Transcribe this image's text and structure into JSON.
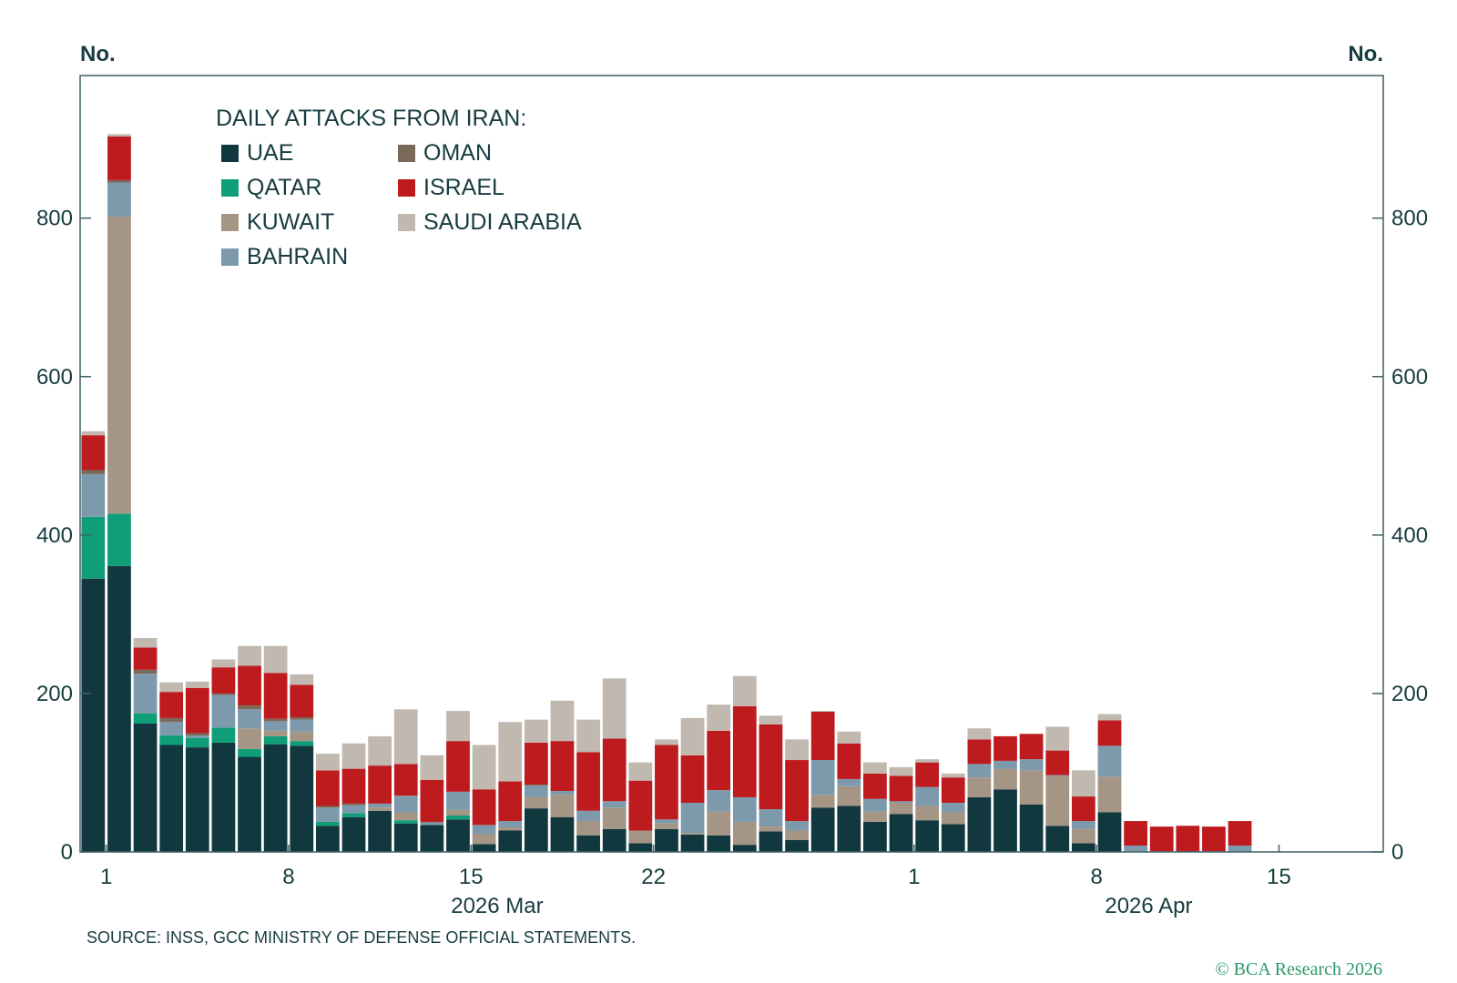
{
  "chart_data": {
    "type": "bar",
    "stacked": true,
    "title": "DAILY ATTACKS FROM IRAN:",
    "ylabel_left": "No.",
    "ylabel_right": "No.",
    "ylim": [
      0,
      980
    ],
    "yticks": [
      0,
      200,
      400,
      600,
      800
    ],
    "grid": false,
    "legend_position": "top-left",
    "x_range": [
      "2026-02-28",
      "2026-04-19"
    ],
    "xticks": [
      {
        "date": "2026-03-01",
        "label": "1"
      },
      {
        "date": "2026-03-08",
        "label": "8"
      },
      {
        "date": "2026-03-15",
        "label": "15"
      },
      {
        "date": "2026-03-22",
        "label": "22"
      },
      {
        "date": "2026-04-01",
        "label": "1"
      },
      {
        "date": "2026-04-08",
        "label": "8"
      },
      {
        "date": "2026-04-15",
        "label": "15"
      }
    ],
    "month_labels": [
      {
        "label": "2026 Mar",
        "date": "2026-03-16"
      },
      {
        "label": "2026 Apr",
        "date": "2026-04-10"
      }
    ],
    "categories": [
      "2026-03-01",
      "2026-03-02",
      "2026-03-03",
      "2026-03-04",
      "2026-03-05",
      "2026-03-06",
      "2026-03-07",
      "2026-03-08",
      "2026-03-09",
      "2026-03-10",
      "2026-03-11",
      "2026-03-12",
      "2026-03-13",
      "2026-03-14",
      "2026-03-15",
      "2026-03-16",
      "2026-03-17",
      "2026-03-18",
      "2026-03-19",
      "2026-03-20",
      "2026-03-21",
      "2026-03-22",
      "2026-03-23",
      "2026-03-24",
      "2026-03-25",
      "2026-03-26",
      "2026-03-27",
      "2026-03-28",
      "2026-03-29",
      "2026-03-30",
      "2026-03-31",
      "2026-04-01",
      "2026-04-02",
      "2026-04-03",
      "2026-04-04",
      "2026-04-05",
      "2026-04-06",
      "2026-04-07",
      "2026-04-08",
      "2026-04-09",
      "2026-04-10",
      "2026-04-11",
      "2026-04-12",
      "2026-04-13",
      "2026-04-14"
    ],
    "series": [
      {
        "name": "UAE",
        "color": "#12383f",
        "values": [
          345,
          361,
          162,
          135,
          132,
          138,
          120,
          136,
          134,
          33,
          44,
          52,
          36,
          34,
          41,
          10,
          27,
          55,
          44,
          21,
          29,
          11,
          29,
          22,
          21,
          9,
          26,
          15,
          56,
          58,
          38,
          48,
          40,
          35,
          69,
          79,
          60,
          33,
          11,
          50,
          0,
          0,
          1,
          0,
          0
        ]
      },
      {
        "name": "QATAR",
        "color": "#0f9e78",
        "values": [
          78,
          66,
          13,
          12,
          12,
          19,
          10,
          10,
          6,
          5,
          5,
          0,
          4,
          0,
          5,
          0,
          0,
          0,
          0,
          0,
          0,
          0,
          0,
          0,
          0,
          0,
          0,
          0,
          0,
          0,
          0,
          0,
          0,
          0,
          0,
          0,
          0,
          0,
          0,
          0,
          0,
          0,
          0,
          0,
          0
        ]
      },
      {
        "name": "KUWAIT",
        "color": "#a59584",
        "values": [
          0,
          375,
          0,
          0,
          0,
          0,
          26,
          7,
          12,
          0,
          0,
          4,
          10,
          0,
          7,
          13,
          4,
          14,
          28,
          18,
          27,
          16,
          7,
          2,
          30,
          29,
          6,
          12,
          16,
          25,
          13,
          14,
          18,
          15,
          25,
          26,
          43,
          63,
          18,
          45,
          0,
          0,
          0,
          0,
          0
        ]
      },
      {
        "name": "BAHRAIN",
        "color": "#7d9aad",
        "values": [
          54,
          43,
          50,
          17,
          3,
          41,
          24,
          12,
          15,
          18,
          10,
          5,
          21,
          3,
          23,
          11,
          8,
          15,
          5,
          13,
          8,
          0,
          5,
          38,
          27,
          31,
          22,
          12,
          44,
          9,
          16,
          2,
          24,
          12,
          17,
          10,
          14,
          1,
          10,
          39,
          8,
          1,
          0,
          1,
          8
        ]
      },
      {
        "name": "OMAN",
        "color": "#7a6858",
        "values": [
          5,
          3,
          5,
          5,
          3,
          2,
          5,
          3,
          3,
          2,
          2,
          0,
          0,
          1,
          0,
          0,
          0,
          1,
          0,
          0,
          0,
          0,
          0,
          0,
          0,
          0,
          0,
          0,
          0,
          0,
          0,
          0,
          0,
          0,
          0,
          0,
          0,
          0,
          0,
          0,
          0,
          0,
          0,
          0,
          0
        ]
      },
      {
        "name": "ISRAEL",
        "color": "#be1b1e",
        "values": [
          44,
          55,
          28,
          33,
          57,
          33,
          50,
          58,
          41,
          45,
          44,
          48,
          40,
          53,
          64,
          45,
          50,
          53,
          63,
          74,
          79,
          63,
          94,
          60,
          75,
          115,
          107,
          77,
          61,
          45,
          32,
          32,
          31,
          32,
          31,
          31,
          32,
          31,
          31,
          32,
          31,
          31,
          32,
          31,
          31
        ]
      },
      {
        "name": "SAUDI ARABIA",
        "color": "#c1b9b0",
        "values": [
          5,
          3,
          12,
          12,
          8,
          10,
          25,
          34,
          13,
          21,
          32,
          37,
          69,
          31,
          38,
          56,
          75,
          29,
          51,
          41,
          76,
          23,
          7,
          47,
          33,
          38,
          11,
          26,
          1,
          15,
          14,
          11,
          4,
          5,
          14,
          0,
          0,
          30,
          33,
          8,
          0,
          0,
          0,
          0,
          0
        ]
      }
    ]
  },
  "legend": {
    "title": "DAILY ATTACKS FROM IRAN:",
    "items": [
      "UAE",
      "QATAR",
      "KUWAIT",
      "BAHRAIN",
      "OMAN",
      "ISRAEL",
      "SAUDI ARABIA"
    ]
  },
  "footer": {
    "source": "SOURCE: INSS, GCC MINISTRY OF DEFENSE OFFICIAL STATEMENTS.",
    "copyright": "© BCA Research 2026"
  },
  "colors": {
    "text": "#173c3f",
    "axis": "#3f5f62",
    "copyright": "#2a9a6a"
  }
}
